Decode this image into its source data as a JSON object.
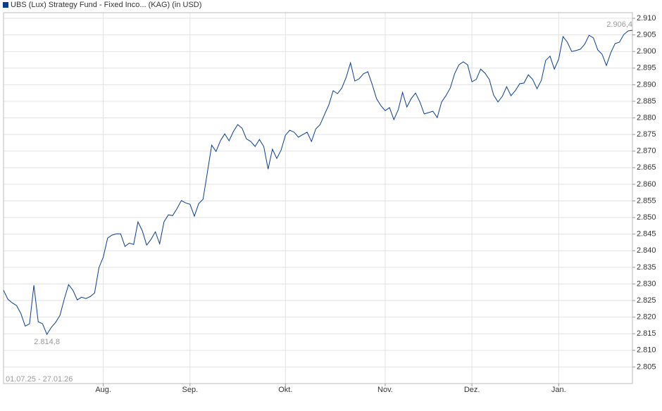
{
  "chart_data": {
    "type": "line",
    "legend": "UBS (Lux) Strategy Fund - Fixed Inco... (KAG) (in USD)",
    "date_range": "01.07.25 - 27.01.26",
    "series": [
      {
        "name": "UBS (Lux) Strategy Fund - Fixed Inco... (KAG) (in USD)",
        "color": "#0a3d8f",
        "values": [
          2828.1,
          2825.4,
          2824.3,
          2823.5,
          2821.1,
          2817.3,
          2818.0,
          2829.6,
          2818.6,
          2818.0,
          2814.8,
          2816.9,
          2818.4,
          2820.5,
          2825.4,
          2829.8,
          2828.1,
          2825.2,
          2826.0,
          2825.6,
          2826.2,
          2827.3,
          2834.9,
          2838.1,
          2843.8,
          2844.7,
          2845.1,
          2845.1,
          2841.3,
          2842.3,
          2841.9,
          2848.7,
          2846.0,
          2841.7,
          2843.4,
          2845.7,
          2842.1,
          2848.7,
          2850.8,
          2850.6,
          2852.7,
          2855.1,
          2854.4,
          2854.0,
          2850.4,
          2854.2,
          2855.5,
          2863.6,
          2871.8,
          2869.9,
          2873.1,
          2875.2,
          2873.1,
          2875.9,
          2878.0,
          2876.9,
          2873.7,
          2872.9,
          2871.4,
          2873.5,
          2871.4,
          2864.6,
          2870.6,
          2867.8,
          2870.3,
          2874.8,
          2876.3,
          2875.7,
          2874.2,
          2875.0,
          2875.7,
          2872.9,
          2876.7,
          2878.0,
          2881.0,
          2883.9,
          2888.2,
          2887.3,
          2889.0,
          2892.2,
          2896.6,
          2891.1,
          2891.8,
          2893.3,
          2893.9,
          2890.1,
          2885.8,
          2883.7,
          2882.2,
          2883.1,
          2879.5,
          2882.4,
          2887.7,
          2883.3,
          2885.8,
          2887.5,
          2884.8,
          2881.2,
          2881.6,
          2882.0,
          2880.1,
          2884.8,
          2886.7,
          2889.0,
          2893.3,
          2896.0,
          2896.9,
          2896.0,
          2890.9,
          2891.6,
          2894.7,
          2893.5,
          2891.6,
          2886.9,
          2884.8,
          2886.5,
          2889.4,
          2886.7,
          2888.2,
          2890.3,
          2890.5,
          2893.0,
          2891.6,
          2888.8,
          2891.3,
          2897.3,
          2898.6,
          2894.7,
          2897.7,
          2904.5,
          2902.8,
          2900.0,
          2900.3,
          2900.7,
          2902.2,
          2904.9,
          2904.1,
          2900.5,
          2899.2,
          2895.8,
          2899.6,
          2902.4,
          2902.8,
          2905.1,
          2906.2,
          2906.4
        ]
      }
    ],
    "annotations": [
      {
        "text": "2.814,8",
        "index": 10
      },
      {
        "text": "2.906,4",
        "index": 145
      }
    ],
    "xlim": [
      0,
      145
    ],
    "xticks": [
      {
        "value": 23,
        "label": "Aug."
      },
      {
        "value": 43,
        "label": "Sep."
      },
      {
        "value": 65,
        "label": "Okt."
      },
      {
        "value": 88,
        "label": "Nov."
      },
      {
        "value": 108,
        "label": "Dez."
      },
      {
        "value": 128,
        "label": "Jan."
      }
    ],
    "ylim": [
      2800,
      2911.7
    ],
    "yticks": [
      {
        "value": 2805,
        "label": "2.805"
      },
      {
        "value": 2810,
        "label": "2.810"
      },
      {
        "value": 2815,
        "label": "2.815"
      },
      {
        "value": 2820,
        "label": "2.820"
      },
      {
        "value": 2825,
        "label": "2.825"
      },
      {
        "value": 2830,
        "label": "2.830"
      },
      {
        "value": 2835,
        "label": "2.835"
      },
      {
        "value": 2840,
        "label": "2.840"
      },
      {
        "value": 2845,
        "label": "2.845"
      },
      {
        "value": 2850,
        "label": "2.850"
      },
      {
        "value": 2855,
        "label": "2.855"
      },
      {
        "value": 2860,
        "label": "2.860"
      },
      {
        "value": 2865,
        "label": "2.865"
      },
      {
        "value": 2870,
        "label": "2.870"
      },
      {
        "value": 2875,
        "label": "2.875"
      },
      {
        "value": 2880,
        "label": "2.880"
      },
      {
        "value": 2885,
        "label": "2.885"
      },
      {
        "value": 2890,
        "label": "2.890"
      },
      {
        "value": 2895,
        "label": "2.895"
      },
      {
        "value": 2900,
        "label": "2.900"
      },
      {
        "value": 2905,
        "label": "2.905"
      },
      {
        "value": 2910,
        "label": "2.910"
      }
    ],
    "grid": true
  }
}
